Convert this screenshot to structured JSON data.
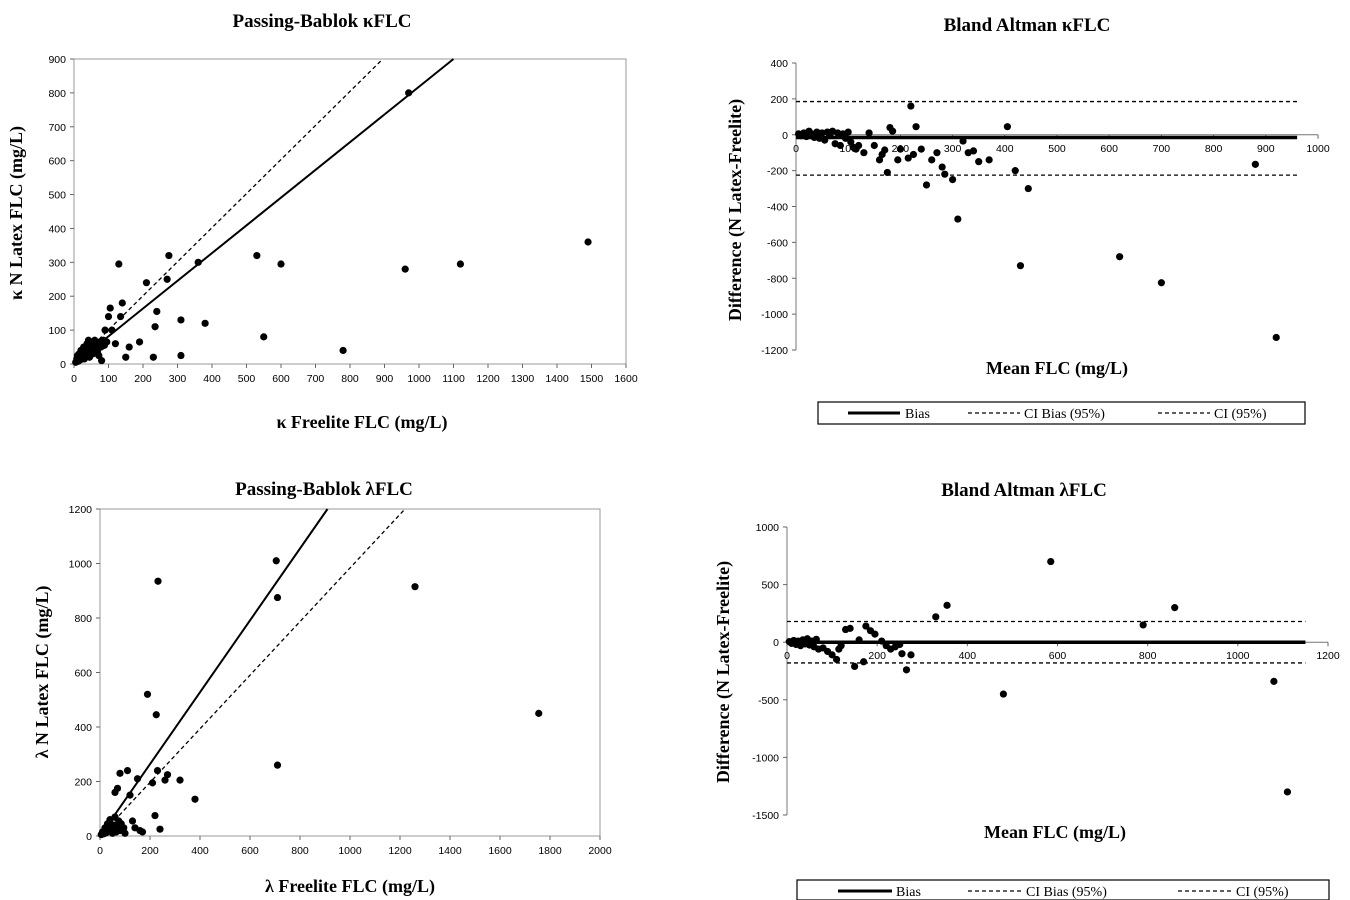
{
  "chart_data": [
    {
      "type": "scatter",
      "title": "Passing-Bablok κFLC",
      "xlabel": "κ Freelite FLC (mg/L)",
      "ylabel": "κ N Latex FLC (mg/L)",
      "xlim": [
        0,
        1600
      ],
      "ylim": [
        0,
        900
      ],
      "xticks": [
        0,
        100,
        200,
        300,
        400,
        500,
        600,
        700,
        800,
        900,
        1000,
        1100,
        1200,
        1300,
        1400,
        1500,
        1600
      ],
      "yticks": [
        0,
        100,
        200,
        300,
        400,
        500,
        600,
        700,
        800,
        900
      ],
      "lines": [
        {
          "style": "solid",
          "x": [
            0,
            1100
          ],
          "y": [
            0,
            900
          ]
        },
        {
          "style": "dashed",
          "x": [
            0,
            895
          ],
          "y": [
            0,
            900
          ]
        }
      ],
      "points": [
        [
          5,
          5
        ],
        [
          8,
          15
        ],
        [
          10,
          25
        ],
        [
          12,
          8
        ],
        [
          15,
          30
        ],
        [
          18,
          12
        ],
        [
          20,
          40
        ],
        [
          22,
          20
        ],
        [
          25,
          35
        ],
        [
          28,
          50
        ],
        [
          30,
          15
        ],
        [
          32,
          45
        ],
        [
          35,
          25
        ],
        [
          38,
          60
        ],
        [
          40,
          30
        ],
        [
          42,
          70
        ],
        [
          45,
          20
        ],
        [
          48,
          55
        ],
        [
          50,
          40
        ],
        [
          52,
          65
        ],
        [
          55,
          30
        ],
        [
          58,
          50
        ],
        [
          60,
          70
        ],
        [
          62,
          45
        ],
        [
          65,
          60
        ],
        [
          68,
          35
        ],
        [
          70,
          55
        ],
        [
          72,
          25
        ],
        [
          75,
          65
        ],
        [
          78,
          50
        ],
        [
          80,
          10
        ],
        [
          82,
          60
        ],
        [
          85,
          70
        ],
        [
          88,
          55
        ],
        [
          90,
          100
        ],
        [
          95,
          65
        ],
        [
          100,
          140
        ],
        [
          105,
          165
        ],
        [
          110,
          100
        ],
        [
          120,
          60
        ],
        [
          130,
          295
        ],
        [
          135,
          140
        ],
        [
          140,
          180
        ],
        [
          150,
          20
        ],
        [
          160,
          50
        ],
        [
          190,
          65
        ],
        [
          210,
          240
        ],
        [
          230,
          20
        ],
        [
          235,
          110
        ],
        [
          240,
          155
        ],
        [
          270,
          250
        ],
        [
          275,
          320
        ],
        [
          310,
          130
        ],
        [
          310,
          25
        ],
        [
          360,
          300
        ],
        [
          380,
          120
        ],
        [
          530,
          320
        ],
        [
          550,
          80
        ],
        [
          600,
          295
        ],
        [
          780,
          40
        ],
        [
          960,
          280
        ],
        [
          970,
          800
        ],
        [
          1120,
          295
        ],
        [
          1490,
          360
        ]
      ]
    },
    {
      "type": "scatter",
      "title": "Bland  Altman κFLC",
      "xlabel": "Mean FLC (mg/L)",
      "ylabel": "Difference  (N Latex-Freelite)",
      "xlim": [
        0,
        1000
      ],
      "ylim": [
        -1200,
        400
      ],
      "xticks": [
        0,
        100,
        200,
        300,
        400,
        500,
        600,
        700,
        800,
        900,
        1000
      ],
      "yticks": [
        -1200,
        -1000,
        -800,
        -600,
        -400,
        -200,
        0,
        200,
        400
      ],
      "bias": -15,
      "ci_upper": 185,
      "ci_lower": -225,
      "line_x_end": 960,
      "legend": [
        "Bias",
        "CI Bias (95%)",
        "CI (95%)"
      ],
      "points": [
        [
          5,
          5
        ],
        [
          10,
          -5
        ],
        [
          15,
          10
        ],
        [
          20,
          -10
        ],
        [
          25,
          20
        ],
        [
          30,
          5
        ],
        [
          35,
          -15
        ],
        [
          40,
          15
        ],
        [
          45,
          -20
        ],
        [
          50,
          10
        ],
        [
          55,
          -30
        ],
        [
          60,
          15
        ],
        [
          65,
          -5
        ],
        [
          70,
          20
        ],
        [
          75,
          -50
        ],
        [
          80,
          10
        ],
        [
          85,
          -60
        ],
        [
          90,
          5
        ],
        [
          95,
          -20
        ],
        [
          100,
          15
        ],
        [
          105,
          -40
        ],
        [
          110,
          -70
        ],
        [
          115,
          -80
        ],
        [
          120,
          -60
        ],
        [
          130,
          -100
        ],
        [
          140,
          10
        ],
        [
          150,
          -60
        ],
        [
          160,
          -140
        ],
        [
          165,
          -110
        ],
        [
          170,
          -85
        ],
        [
          175,
          -210
        ],
        [
          180,
          40
        ],
        [
          185,
          20
        ],
        [
          195,
          -140
        ],
        [
          200,
          -80
        ],
        [
          215,
          -130
        ],
        [
          220,
          160
        ],
        [
          225,
          -110
        ],
        [
          230,
          45
        ],
        [
          240,
          -80
        ],
        [
          250,
          -280
        ],
        [
          260,
          -140
        ],
        [
          270,
          -100
        ],
        [
          280,
          -180
        ],
        [
          285,
          -220
        ],
        [
          300,
          -250
        ],
        [
          310,
          -470
        ],
        [
          320,
          -35
        ],
        [
          330,
          -100
        ],
        [
          340,
          -90
        ],
        [
          350,
          -150
        ],
        [
          370,
          -140
        ],
        [
          405,
          45
        ],
        [
          420,
          -200
        ],
        [
          430,
          -730
        ],
        [
          445,
          -300
        ],
        [
          620,
          -680
        ],
        [
          700,
          -825
        ],
        [
          880,
          -165
        ],
        [
          920,
          -1130
        ]
      ]
    },
    {
      "type": "scatter",
      "title": "Passing-Bablok λFLC",
      "xlabel": "λ  Freelite FLC (mg/L)",
      "ylabel": "λ N Latex FLC (mg/L)",
      "xlim": [
        0,
        2000
      ],
      "ylim": [
        0,
        1200
      ],
      "xticks": [
        0,
        200,
        400,
        600,
        800,
        1000,
        1200,
        1400,
        1600,
        1800,
        2000
      ],
      "yticks": [
        0,
        200,
        400,
        600,
        800,
        1000,
        1200
      ],
      "lines": [
        {
          "style": "solid",
          "x": [
            0,
            910
          ],
          "y": [
            0,
            1200
          ]
        },
        {
          "style": "dashed",
          "x": [
            0,
            1220
          ],
          "y": [
            0,
            1200
          ]
        }
      ],
      "points": [
        [
          5,
          5
        ],
        [
          10,
          15
        ],
        [
          15,
          8
        ],
        [
          20,
          30
        ],
        [
          25,
          12
        ],
        [
          30,
          45
        ],
        [
          35,
          20
        ],
        [
          40,
          60
        ],
        [
          45,
          25
        ],
        [
          50,
          10
        ],
        [
          55,
          40
        ],
        [
          60,
          70
        ],
        [
          65,
          15
        ],
        [
          70,
          35
        ],
        [
          75,
          55
        ],
        [
          80,
          20
        ],
        [
          85,
          45
        ],
        [
          90,
          25
        ],
        [
          95,
          30
        ],
        [
          100,
          10
        ],
        [
          60,
          160
        ],
        [
          70,
          175
        ],
        [
          80,
          230
        ],
        [
          110,
          240
        ],
        [
          120,
          150
        ],
        [
          130,
          55
        ],
        [
          140,
          30
        ],
        [
          150,
          210
        ],
        [
          160,
          20
        ],
        [
          170,
          15
        ],
        [
          190,
          520
        ],
        [
          210,
          195
        ],
        [
          220,
          75
        ],
        [
          225,
          445
        ],
        [
          230,
          240
        ],
        [
          232,
          935
        ],
        [
          240,
          25
        ],
        [
          260,
          205
        ],
        [
          270,
          225
        ],
        [
          320,
          205
        ],
        [
          380,
          135
        ],
        [
          705,
          1010
        ],
        [
          710,
          875
        ],
        [
          710,
          260
        ],
        [
          1260,
          915
        ],
        [
          1755,
          450
        ]
      ]
    },
    {
      "type": "scatter",
      "title": "Bland Altman λFLC",
      "xlabel": "Mean FLC (mg/L)",
      "ylabel": "Difference (N Latex-Freelite)",
      "xlim": [
        0,
        1200
      ],
      "ylim": [
        -1500,
        1000
      ],
      "xticks": [
        0,
        200,
        400,
        600,
        800,
        1000,
        1200
      ],
      "yticks": [
        -1500,
        -1000,
        -500,
        0,
        500,
        1000
      ],
      "bias": 0,
      "ci_upper": 180,
      "ci_lower": -180,
      "line_x_end": 1150,
      "legend": [
        "Bias",
        "CI Bias (95%)",
        "CI (95%)"
      ],
      "points": [
        [
          5,
          5
        ],
        [
          10,
          -10
        ],
        [
          15,
          15
        ],
        [
          20,
          -20
        ],
        [
          25,
          10
        ],
        [
          30,
          -30
        ],
        [
          35,
          20
        ],
        [
          40,
          -15
        ],
        [
          45,
          30
        ],
        [
          50,
          -25
        ],
        [
          55,
          10
        ],
        [
          60,
          -40
        ],
        [
          65,
          25
        ],
        [
          70,
          -60
        ],
        [
          80,
          -50
        ],
        [
          90,
          -80
        ],
        [
          100,
          -110
        ],
        [
          110,
          -150
        ],
        [
          115,
          -60
        ],
        [
          120,
          -30
        ],
        [
          130,
          110
        ],
        [
          140,
          120
        ],
        [
          150,
          -210
        ],
        [
          160,
          20
        ],
        [
          170,
          -170
        ],
        [
          175,
          140
        ],
        [
          185,
          100
        ],
        [
          195,
          70
        ],
        [
          210,
          10
        ],
        [
          220,
          -30
        ],
        [
          230,
          -60
        ],
        [
          240,
          -40
        ],
        [
          250,
          -20
        ],
        [
          255,
          -100
        ],
        [
          265,
          -240
        ],
        [
          275,
          -110
        ],
        [
          330,
          220
        ],
        [
          355,
          320
        ],
        [
          480,
          -450
        ],
        [
          585,
          700
        ],
        [
          790,
          150
        ],
        [
          860,
          300
        ],
        [
          1080,
          -340
        ],
        [
          1110,
          -1300
        ]
      ]
    }
  ]
}
